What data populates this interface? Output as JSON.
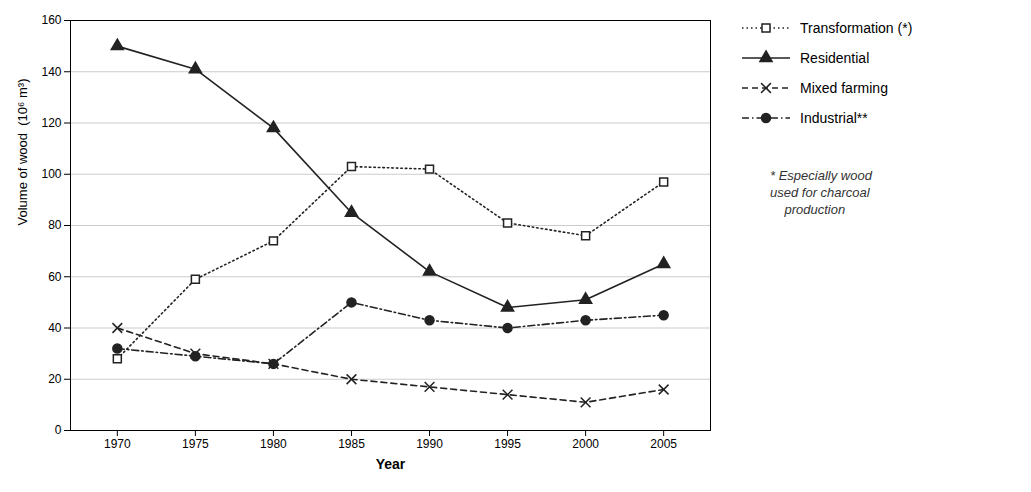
{
  "chart_data": {
    "type": "line",
    "xlabel": "Year",
    "ylabel": "Volume of wood  (10⁶ m³)",
    "x": [
      1970,
      1975,
      1980,
      1985,
      1990,
      1995,
      2000,
      2005
    ],
    "xlim": [
      1967,
      2008
    ],
    "xticks": [
      1970,
      1975,
      1980,
      1985,
      1990,
      1995,
      2000,
      2005
    ],
    "ylim": [
      0,
      160
    ],
    "yticks": [
      0,
      20,
      40,
      60,
      80,
      100,
      120,
      140,
      160
    ],
    "grid": true,
    "legend": "right",
    "series": [
      {
        "name": "Transformation (*)",
        "color": "#222222",
        "marker": "open_square",
        "line_style": "dotted",
        "values": [
          28,
          59,
          74,
          103,
          102,
          81,
          76,
          97
        ]
      },
      {
        "name": "Residential",
        "color": "#222222",
        "marker": "triangle",
        "line_style": "solid",
        "values": [
          150,
          141,
          118,
          85,
          62,
          48,
          51,
          65
        ]
      },
      {
        "name": "Mixed farming",
        "color": "#222222",
        "marker": "x",
        "line_style": "dashed",
        "values": [
          40,
          30,
          26,
          20,
          17,
          14,
          11,
          16
        ]
      },
      {
        "name": "Industrial**",
        "color": "#222222",
        "marker": "circle",
        "line_style": "dashdot",
        "values": [
          32,
          29,
          26,
          50,
          43,
          40,
          43,
          45
        ]
      }
    ],
    "annotation": "* Especially wood\nused for charcoal\n    production"
  }
}
